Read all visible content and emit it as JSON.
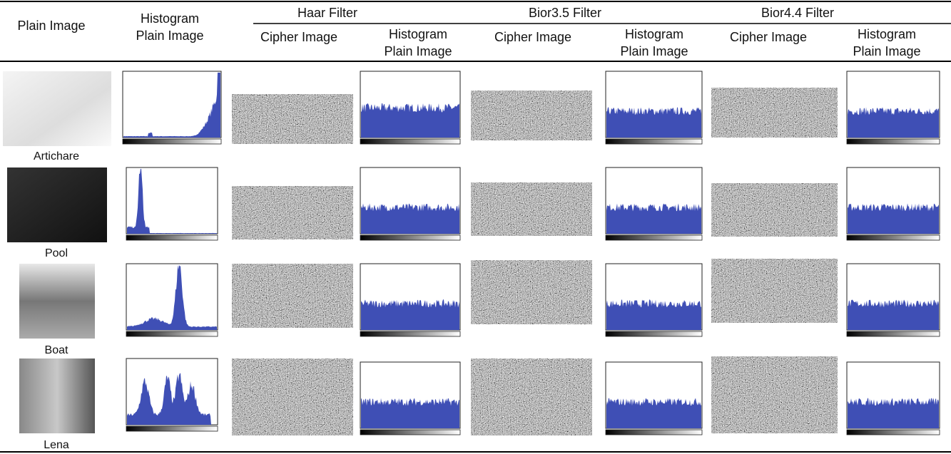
{
  "header": {
    "plain_image": "Plain Image",
    "histogram": [
      "Histogram",
      "Plain Image"
    ],
    "groups": [
      {
        "title": "Haar Filter",
        "cipher": "Cipher Image",
        "histogram": [
          "Histogram",
          "Plain Image"
        ]
      },
      {
        "title": "Bior3.5 Filter",
        "cipher": "Cipher Image",
        "histogram": [
          "Histogram",
          "Plain Image"
        ]
      },
      {
        "title": "Bior4.4 Filter",
        "cipher": "Cipher Image",
        "histogram": [
          "Histogram",
          "Plain Image"
        ]
      }
    ]
  },
  "rows": [
    "Artichare",
    "Pool",
    "Boat",
    "Lena"
  ]
}
